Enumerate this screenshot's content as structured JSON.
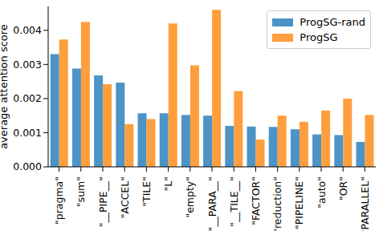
{
  "chart_data": {
    "type": "bar",
    "y_label": "average attention score",
    "categories": [
      "\"pragma\"",
      "\"sum\"",
      "\"__PIPE__\"",
      "\"ACCEL\"",
      "\"TILE\"",
      "\"L\"",
      "\"empty\"",
      "\"__PARA__\"",
      "\"__TILE__\"",
      "\"FACTOR\"",
      "\"reduction\"",
      "\"PIPELINE\"",
      "\"auto\"",
      "\"OR\"",
      "\"PARALLEL\""
    ],
    "series": [
      {
        "name": "ProgSG-rand",
        "color": "#4c93c6",
        "values": [
          0.0033,
          0.00288,
          0.00268,
          0.00247,
          0.00157,
          0.00157,
          0.00152,
          0.0015,
          0.0012,
          0.00118,
          0.00117,
          0.0011,
          0.00095,
          0.00093,
          0.00073
        ]
      },
      {
        "name": "ProgSG",
        "color": "#ff9e3d",
        "values": [
          0.00373,
          0.00425,
          0.00242,
          0.00125,
          0.0014,
          0.0042,
          0.00297,
          0.0046,
          0.00222,
          0.0008,
          0.0015,
          0.00132,
          0.00165,
          0.002,
          0.00152
        ]
      }
    ],
    "ylim": [
      0,
      0.0047
    ],
    "yticks": [
      {
        "value": 0,
        "label": "0.000"
      },
      {
        "value": 0.001,
        "label": "0.001"
      },
      {
        "value": 0.002,
        "label": "0.002"
      },
      {
        "value": 0.003,
        "label": "0.003"
      },
      {
        "value": 0.004,
        "label": "0.004"
      }
    ],
    "legend": "upper right",
    "grid": false
  }
}
